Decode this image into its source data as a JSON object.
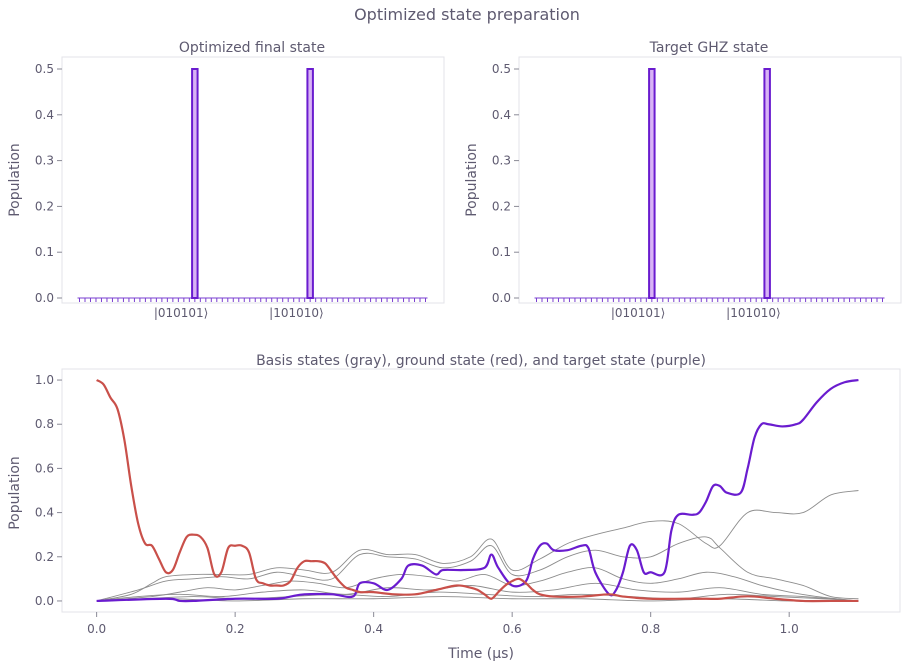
{
  "figure": {
    "title": "Optimized state preparation"
  },
  "chart_data": [
    {
      "type": "bar",
      "title": "Optimized final state",
      "xlabel": "",
      "ylabel": "Population",
      "ylim": [
        0,
        0.5
      ],
      "yticks": [
        "0.0",
        "0.1",
        "0.2",
        "0.3",
        "0.4",
        "0.5"
      ],
      "num_basis_states": 64,
      "categories": [
        "|010101⟩",
        "|101010⟩"
      ],
      "category_indices": [
        21,
        42
      ],
      "values": [
        0.5,
        0.5
      ],
      "colors": {
        "bar_edge": "#6a1ccf",
        "bar_fill": "#d8b3f5",
        "tick": "#7a3fd0"
      }
    },
    {
      "type": "bar",
      "title": "Target GHZ state",
      "xlabel": "",
      "ylabel": "Population",
      "ylim": [
        0,
        0.5
      ],
      "yticks": [
        "0.0",
        "0.1",
        "0.2",
        "0.3",
        "0.4",
        "0.5"
      ],
      "num_basis_states": 64,
      "categories": [
        "|010101⟩",
        "|101010⟩"
      ],
      "category_indices": [
        21,
        42
      ],
      "values": [
        0.5,
        0.5
      ],
      "colors": {
        "bar_edge": "#6a1ccf",
        "bar_fill": "#d8b3f5",
        "tick": "#7a3fd0"
      }
    },
    {
      "type": "line",
      "title": "Basis states (gray), ground state (red), and target state (purple)",
      "xlabel": "Time (µs)",
      "ylabel": "Population",
      "xlim": [
        -0.05,
        1.16
      ],
      "ylim": [
        -0.05,
        1.05
      ],
      "xticks": [
        "0.0",
        "0.2",
        "0.4",
        "0.6",
        "0.8",
        "1.0"
      ],
      "yticks": [
        "0.0",
        "0.2",
        "0.4",
        "0.6",
        "0.8",
        "1.0"
      ],
      "series": [
        {
          "name": "ground state",
          "color": "#c9504a",
          "x": [
            0.0,
            0.01,
            0.02,
            0.03,
            0.04,
            0.05,
            0.06,
            0.07,
            0.08,
            0.09,
            0.1,
            0.11,
            0.12,
            0.13,
            0.14,
            0.15,
            0.16,
            0.17,
            0.18,
            0.19,
            0.2,
            0.21,
            0.22,
            0.23,
            0.24,
            0.25,
            0.26,
            0.27,
            0.28,
            0.29,
            0.3,
            0.31,
            0.32,
            0.33,
            0.34,
            0.35,
            0.36,
            0.37,
            0.38,
            0.39,
            0.4,
            0.43,
            0.46,
            0.49,
            0.52,
            0.54,
            0.55,
            0.56,
            0.57,
            0.58,
            0.59,
            0.6,
            0.61,
            0.62,
            0.63,
            0.64,
            0.66,
            0.7,
            0.74,
            0.76,
            0.8,
            0.85,
            0.88,
            0.9,
            0.93,
            0.95,
            0.98,
            1.02,
            1.06,
            1.1
          ],
          "y": [
            1.0,
            0.98,
            0.92,
            0.87,
            0.73,
            0.52,
            0.35,
            0.26,
            0.25,
            0.19,
            0.13,
            0.14,
            0.22,
            0.29,
            0.3,
            0.29,
            0.24,
            0.12,
            0.13,
            0.24,
            0.25,
            0.25,
            0.22,
            0.1,
            0.08,
            0.07,
            0.07,
            0.07,
            0.09,
            0.15,
            0.18,
            0.18,
            0.18,
            0.17,
            0.13,
            0.09,
            0.06,
            0.05,
            0.04,
            0.04,
            0.04,
            0.03,
            0.03,
            0.05,
            0.07,
            0.06,
            0.05,
            0.03,
            0.01,
            0.04,
            0.07,
            0.09,
            0.1,
            0.08,
            0.05,
            0.03,
            0.02,
            0.02,
            0.03,
            0.02,
            0.01,
            0.01,
            0.01,
            0.01,
            0.02,
            0.02,
            0.01,
            0.0,
            0.0,
            0.0
          ]
        },
        {
          "name": "target state",
          "color": "#6a1ccf",
          "x": [
            0.0,
            0.1,
            0.12,
            0.14,
            0.2,
            0.26,
            0.28,
            0.3,
            0.34,
            0.37,
            0.38,
            0.4,
            0.42,
            0.44,
            0.45,
            0.47,
            0.49,
            0.5,
            0.53,
            0.56,
            0.57,
            0.58,
            0.6,
            0.62,
            0.63,
            0.64,
            0.65,
            0.66,
            0.68,
            0.7,
            0.71,
            0.72,
            0.74,
            0.75,
            0.76,
            0.77,
            0.78,
            0.79,
            0.8,
            0.82,
            0.83,
            0.84,
            0.86,
            0.87,
            0.88,
            0.89,
            0.9,
            0.91,
            0.93,
            0.94,
            0.95,
            0.96,
            0.97,
            0.99,
            1.01,
            1.02,
            1.04,
            1.06,
            1.08,
            1.1
          ],
          "y": [
            0.0,
            0.01,
            0.0,
            0.0,
            0.01,
            0.01,
            0.02,
            0.03,
            0.03,
            0.02,
            0.08,
            0.08,
            0.05,
            0.1,
            0.16,
            0.16,
            0.12,
            0.14,
            0.14,
            0.15,
            0.21,
            0.15,
            0.07,
            0.09,
            0.19,
            0.25,
            0.26,
            0.23,
            0.23,
            0.25,
            0.24,
            0.13,
            0.03,
            0.05,
            0.13,
            0.25,
            0.23,
            0.13,
            0.13,
            0.13,
            0.32,
            0.39,
            0.39,
            0.4,
            0.45,
            0.52,
            0.52,
            0.49,
            0.49,
            0.6,
            0.74,
            0.8,
            0.8,
            0.79,
            0.8,
            0.82,
            0.9,
            0.96,
            0.99,
            1.0
          ]
        },
        {
          "name": "basis state",
          "color": "#8d8d8d",
          "x": [
            0.0,
            0.05,
            0.08,
            0.1,
            0.14,
            0.18,
            0.22,
            0.26,
            0.3,
            0.34,
            0.38,
            0.42,
            0.46,
            0.5,
            0.54,
            0.57,
            0.6,
            0.64,
            0.68,
            0.72,
            0.76,
            0.8,
            0.84,
            0.88,
            0.9,
            0.94,
            0.98,
            1.02,
            1.06,
            1.1
          ],
          "y": [
            0.0,
            0.03,
            0.08,
            0.11,
            0.12,
            0.12,
            0.12,
            0.15,
            0.14,
            0.13,
            0.23,
            0.21,
            0.21,
            0.17,
            0.2,
            0.28,
            0.14,
            0.19,
            0.26,
            0.3,
            0.33,
            0.36,
            0.35,
            0.26,
            0.25,
            0.4,
            0.4,
            0.4,
            0.48,
            0.5
          ]
        },
        {
          "name": "basis state",
          "color": "#8d8d8d",
          "x": [
            0.0,
            0.06,
            0.1,
            0.14,
            0.18,
            0.22,
            0.26,
            0.3,
            0.34,
            0.38,
            0.42,
            0.46,
            0.5,
            0.54,
            0.57,
            0.6,
            0.64,
            0.68,
            0.72,
            0.76,
            0.8,
            0.84,
            0.88,
            0.9,
            0.94,
            0.98,
            1.02,
            1.06,
            1.1
          ],
          "y": [
            0.0,
            0.05,
            0.09,
            0.1,
            0.11,
            0.1,
            0.13,
            0.11,
            0.1,
            0.21,
            0.2,
            0.19,
            0.15,
            0.18,
            0.25,
            0.12,
            0.14,
            0.2,
            0.23,
            0.2,
            0.2,
            0.26,
            0.29,
            0.24,
            0.13,
            0.1,
            0.07,
            0.02,
            0.01
          ]
        },
        {
          "name": "basis state",
          "color": "#8d8d8d",
          "x": [
            0.0,
            0.08,
            0.12,
            0.16,
            0.2,
            0.24,
            0.28,
            0.32,
            0.36,
            0.4,
            0.44,
            0.48,
            0.52,
            0.56,
            0.6,
            0.64,
            0.68,
            0.72,
            0.76,
            0.8,
            0.84,
            0.88,
            0.92,
            0.96,
            1.0,
            1.04,
            1.1
          ],
          "y": [
            0.0,
            0.02,
            0.04,
            0.06,
            0.05,
            0.07,
            0.09,
            0.08,
            0.06,
            0.1,
            0.12,
            0.11,
            0.09,
            0.12,
            0.07,
            0.09,
            0.13,
            0.15,
            0.1,
            0.08,
            0.1,
            0.13,
            0.11,
            0.07,
            0.04,
            0.02,
            0.0
          ]
        },
        {
          "name": "basis state",
          "color": "#8d8d8d",
          "x": [
            0.0,
            0.06,
            0.12,
            0.18,
            0.24,
            0.3,
            0.36,
            0.42,
            0.48,
            0.54,
            0.6,
            0.66,
            0.72,
            0.78,
            0.84,
            0.9,
            0.96,
            1.02,
            1.1
          ],
          "y": [
            0.0,
            0.02,
            0.03,
            0.02,
            0.04,
            0.05,
            0.03,
            0.06,
            0.05,
            0.07,
            0.04,
            0.05,
            0.08,
            0.05,
            0.04,
            0.06,
            0.03,
            0.02,
            0.0
          ]
        },
        {
          "name": "basis state",
          "color": "#8d8d8d",
          "x": [
            0.0,
            0.07,
            0.14,
            0.21,
            0.28,
            0.35,
            0.42,
            0.49,
            0.56,
            0.63,
            0.7,
            0.77,
            0.84,
            0.91,
            0.98,
            1.05,
            1.1
          ],
          "y": [
            0.0,
            0.01,
            0.02,
            0.01,
            0.02,
            0.03,
            0.02,
            0.04,
            0.03,
            0.02,
            0.03,
            0.02,
            0.01,
            0.03,
            0.02,
            0.01,
            0.0
          ]
        },
        {
          "name": "basis state",
          "color": "#8d8d8d",
          "x": [
            0.0,
            0.1,
            0.2,
            0.3,
            0.4,
            0.5,
            0.6,
            0.7,
            0.8,
            0.9,
            1.0,
            1.1
          ],
          "y": [
            0.0,
            0.01,
            0.0,
            0.01,
            0.01,
            0.02,
            0.01,
            0.01,
            0.0,
            0.01,
            0.0,
            0.0
          ]
        }
      ]
    }
  ]
}
